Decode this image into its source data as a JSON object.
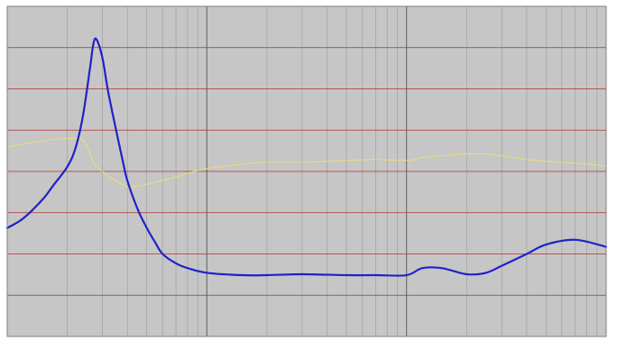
{
  "chart_data": {
    "type": "line",
    "x_scale": "log",
    "grid": true,
    "legend": "none",
    "colors": {
      "plot_background": "#c6c6c6",
      "minor_grid": "#9a9a9a",
      "major_grid": "#6a6a6a",
      "horizontal_grid": "#b03030",
      "series_main": "#1f22c8",
      "series_phase": "#e8de7a"
    },
    "x": [
      10,
      12,
      15,
      17,
      20,
      22,
      24,
      26,
      27,
      28,
      30,
      32,
      35,
      38,
      40,
      45,
      50,
      55,
      60,
      70,
      80,
      100,
      150,
      200,
      300,
      500,
      700,
      1000,
      1200,
      1500,
      2000,
      2500,
      3000,
      4000,
      5000,
      7000,
      10000
    ],
    "series": [
      {
        "values": [
          -12,
          -10,
          -6,
          -3,
          1,
          5,
          12,
          22,
          27,
          28,
          24,
          17,
          9,
          2,
          -2,
          -8,
          -12,
          -15,
          -17.5,
          -19.5,
          -20.5,
          -21.5,
          -22,
          -22,
          -21.8,
          -22,
          -22,
          -22,
          -20.5,
          -20.5,
          -21.8,
          -21.5,
          -20,
          -17.5,
          -15.5,
          -14.5,
          -16
        ],
        "ylim": [
          -35,
          35
        ]
      },
      {
        "values": [
          26,
          30,
          33,
          35,
          36,
          36,
          34,
          20,
          10,
          5,
          0,
          -5,
          -10,
          -15,
          -17,
          -16,
          -14,
          -12,
          -10,
          -6,
          -2,
          3,
          8,
          10,
          10,
          12,
          13,
          12,
          15,
          17,
          19,
          19,
          17,
          13,
          11,
          9,
          6
        ],
        "ylim": [
          -180,
          180
        ]
      }
    ],
    "ylim_left": [
      -35,
      35
    ],
    "ylim_right": [
      -180,
      180
    ],
    "xlim": [
      10,
      10000
    ],
    "x_tick_labels": [],
    "y_tick_labels_left": [
      "",
      "",
      "",
      "",
      "",
      "",
      ""
    ],
    "y_tick_labels_right": [
      "",
      "",
      "",
      "",
      "",
      "",
      ""
    ]
  }
}
